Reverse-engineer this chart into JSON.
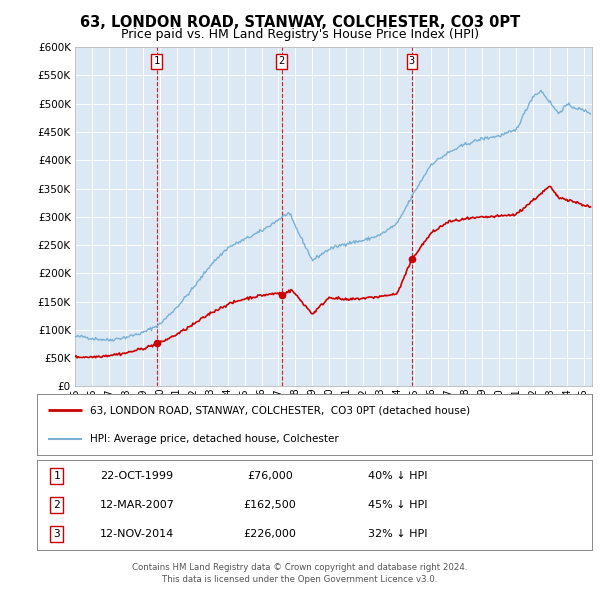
{
  "title": "63, LONDON ROAD, STANWAY, COLCHESTER, CO3 0PT",
  "subtitle": "Price paid vs. HM Land Registry's House Price Index (HPI)",
  "title_fontsize": 10.5,
  "subtitle_fontsize": 9,
  "plot_bg_color": "#dce9f5",
  "grid_color": "#ffffff",
  "ylim": [
    0,
    600000
  ],
  "yticks": [
    0,
    50000,
    100000,
    150000,
    200000,
    250000,
    300000,
    350000,
    400000,
    450000,
    500000,
    550000,
    600000
  ],
  "xlim_start": 1995.0,
  "xlim_end": 2025.5,
  "sale_color": "#cc0000",
  "hpi_color": "#7ab0d4",
  "sale_linewidth": 1.2,
  "hpi_linewidth": 1.0,
  "transactions": [
    {
      "label": "1",
      "date_num": 1999.81,
      "price": 76000,
      "pct": "40%",
      "date_str": "22-OCT-1999",
      "price_str": "£76,000"
    },
    {
      "label": "2",
      "date_num": 2007.19,
      "price": 162500,
      "pct": "45%",
      "date_str": "12-MAR-2007",
      "price_str": "£162,500"
    },
    {
      "label": "3",
      "date_num": 2014.87,
      "price": 226000,
      "pct": "32%",
      "date_str": "12-NOV-2014",
      "price_str": "£226,000"
    }
  ],
  "legend_line1": "63, LONDON ROAD, STANWAY, COLCHESTER,  CO3 0PT (detached house)",
  "legend_line2": "HPI: Average price, detached house, Colchester",
  "footer_line1": "Contains HM Land Registry data © Crown copyright and database right 2024.",
  "footer_line2": "This data is licensed under the Open Government Licence v3.0."
}
